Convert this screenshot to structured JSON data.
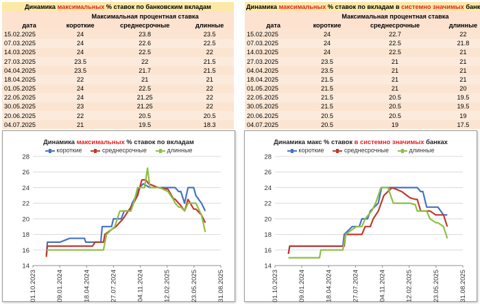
{
  "tables": [
    {
      "title_parts": [
        "Динамика ",
        "максимальных",
        " % ставок по банковским вкладам"
      ],
      "subheader": "Максимальная процентная ставка",
      "columns": [
        "дата",
        "короткие",
        "среднесрочные",
        "длинные"
      ],
      "rows": [
        [
          "15.02.2025",
          "24",
          "23.8",
          "23.5"
        ],
        [
          "07.03.2025",
          "24",
          "22.6",
          "22.5"
        ],
        [
          "14.03.2025",
          "24",
          "22.5",
          "22"
        ],
        [
          "27.03.2025",
          "23.5",
          "22",
          "21.5"
        ],
        [
          "04.04.2025",
          "23.5",
          "21.7",
          "21.5"
        ],
        [
          "18.04.2025",
          "22",
          "21",
          "21"
        ],
        [
          "01.05.2025",
          "24",
          "22.5",
          "22"
        ],
        [
          "22.05.2025",
          "24",
          "21.25",
          "22"
        ],
        [
          "30.05.2025",
          "23",
          "21.25",
          "22"
        ],
        [
          "20.06.2025",
          "22",
          "20.5",
          "20.5"
        ],
        [
          "04.07.2025",
          "21",
          "19.5",
          "18.3"
        ]
      ]
    },
    {
      "title_parts": [
        "Динамика ",
        "максимальных",
        " % ставок по вкладам в ",
        "системно значимых",
        " банках"
      ],
      "subheader": "Максимальная процентная ставка",
      "columns": [
        "дата",
        "короткие",
        "среднесрочные",
        "длинные"
      ],
      "rows": [
        [
          "15.02.2025",
          "24",
          "22.7",
          "22"
        ],
        [
          "07.03.2025",
          "24",
          "22.5",
          "21.8"
        ],
        [
          "14.03.2025",
          "24",
          "22.5",
          "21"
        ],
        [
          "27.03.2025",
          "23.5",
          "21",
          "21"
        ],
        [
          "04.04.2025",
          "23.5",
          "21",
          "21"
        ],
        [
          "18.04.2025",
          "21.5",
          "21",
          "21"
        ],
        [
          "01.05.2025",
          "21.5",
          "21",
          "20"
        ],
        [
          "22.05.2025",
          "21.5",
          "20.5",
          "19.5"
        ],
        [
          "30.05.2025",
          "21.5",
          "20.5",
          "19.5"
        ],
        [
          "20.06.2025",
          "20.5",
          "20.5",
          "19"
        ],
        [
          "04.07.2025",
          "20.5",
          "19",
          "17.5"
        ]
      ]
    }
  ],
  "chart_data": [
    {
      "type": "line",
      "title_parts": [
        "Динамика ",
        "максимальных",
        " % ставок по вкладам"
      ],
      "y_ticks": [
        "14",
        "16",
        "18",
        "20",
        "22",
        "24",
        "26",
        "28"
      ],
      "ylim": [
        14,
        28
      ],
      "x_ticks": [
        "01.10.2023",
        "09.01.2024",
        "18.04.2024",
        "27.07.2024",
        "04.11.2024",
        "12.02.2025",
        "23.05.2025",
        "31.08.2025"
      ],
      "xlim": [
        "2023-10-01",
        "2025-08-31"
      ],
      "grid": true,
      "legend_position": "top",
      "colors": [
        "#4472c4",
        "#c0392b",
        "#8cbf44"
      ],
      "series": [
        {
          "name": "короткие",
          "points": [
            [
              "2023-11-20",
              15.3
            ],
            [
              "2023-11-24",
              17
            ],
            [
              "2024-01-10",
              17
            ],
            [
              "2024-02-15",
              17.5
            ],
            [
              "2024-04-10",
              17.5
            ],
            [
              "2024-04-15",
              17
            ],
            [
              "2024-06-10",
              17
            ],
            [
              "2024-06-15",
              19
            ],
            [
              "2024-07-20",
              19
            ],
            [
              "2024-07-27",
              20
            ],
            [
              "2024-08-25",
              20
            ],
            [
              "2024-09-05",
              21
            ],
            [
              "2024-09-25",
              21
            ],
            [
              "2024-10-05",
              22
            ],
            [
              "2024-10-20",
              23
            ],
            [
              "2024-11-01",
              24
            ],
            [
              "2024-11-15",
              24.5
            ],
            [
              "2024-12-10",
              24
            ],
            [
              "2025-02-15",
              24
            ],
            [
              "2025-03-14",
              24
            ],
            [
              "2025-03-27",
              23.5
            ],
            [
              "2025-04-04",
              23.5
            ],
            [
              "2025-04-18",
              22
            ],
            [
              "2025-05-01",
              24
            ],
            [
              "2025-05-22",
              24
            ],
            [
              "2025-05-30",
              23
            ],
            [
              "2025-06-20",
              22
            ],
            [
              "2025-07-04",
              21
            ]
          ]
        },
        {
          "name": "среднесрочные",
          "points": [
            [
              "2023-11-20",
              15.1
            ],
            [
              "2023-11-24",
              16.5
            ],
            [
              "2024-05-10",
              16.5
            ],
            [
              "2024-05-20",
              17
            ],
            [
              "2024-06-20",
              17
            ],
            [
              "2024-06-25",
              18
            ],
            [
              "2024-07-15",
              18.5
            ],
            [
              "2024-08-05",
              19
            ],
            [
              "2024-09-01",
              20
            ],
            [
              "2024-09-20",
              21
            ],
            [
              "2024-10-10",
              22
            ],
            [
              "2024-10-25",
              23
            ],
            [
              "2024-11-10",
              25
            ],
            [
              "2024-11-25",
              25
            ],
            [
              "2024-12-05",
              24.5
            ],
            [
              "2025-01-10",
              24
            ],
            [
              "2025-02-15",
              23.8
            ],
            [
              "2025-03-07",
              22.6
            ],
            [
              "2025-03-14",
              22.5
            ],
            [
              "2025-03-27",
              22
            ],
            [
              "2025-04-04",
              21.7
            ],
            [
              "2025-04-18",
              21
            ],
            [
              "2025-05-01",
              22.5
            ],
            [
              "2025-05-22",
              21.25
            ],
            [
              "2025-05-30",
              21.25
            ],
            [
              "2025-06-20",
              20.5
            ],
            [
              "2025-07-04",
              19.5
            ]
          ]
        },
        {
          "name": "длинные",
          "points": [
            [
              "2023-11-20",
              16
            ],
            [
              "2024-04-10",
              16
            ],
            [
              "2024-06-20",
              16
            ],
            [
              "2024-07-01",
              18
            ],
            [
              "2024-08-01",
              19
            ],
            [
              "2024-08-20",
              21
            ],
            [
              "2024-09-30",
              21
            ],
            [
              "2024-10-10",
              22
            ],
            [
              "2024-10-25",
              24
            ],
            [
              "2024-11-20",
              24
            ],
            [
              "2024-12-01",
              26.5
            ],
            [
              "2024-12-10",
              24
            ],
            [
              "2025-01-15",
              24
            ],
            [
              "2025-02-15",
              23.5
            ],
            [
              "2025-03-07",
              22.5
            ],
            [
              "2025-03-14",
              22
            ],
            [
              "2025-03-27",
              21.5
            ],
            [
              "2025-04-04",
              21.5
            ],
            [
              "2025-04-18",
              21
            ],
            [
              "2025-05-01",
              22
            ],
            [
              "2025-05-22",
              22
            ],
            [
              "2025-05-30",
              22
            ],
            [
              "2025-06-20",
              20.5
            ],
            [
              "2025-07-04",
              18.3
            ]
          ]
        }
      ]
    },
    {
      "type": "line",
      "title_parts": [
        "Динамика макс % ставок ",
        "в системно значимых",
        " банках"
      ],
      "y_ticks": [
        "14",
        "16",
        "18",
        "20",
        "22",
        "24",
        "26",
        "28"
      ],
      "ylim": [
        14,
        28
      ],
      "x_ticks": [
        "01.10.2023",
        "09.01.2024",
        "18.04.2024",
        "27.07.2024",
        "04.11.2024",
        "12.02.2025",
        "23.05.2025",
        "31.08.2025"
      ],
      "xlim": [
        "2023-10-01",
        "2025-08-31"
      ],
      "grid": true,
      "legend_position": "top",
      "colors": [
        "#4472c4",
        "#c0392b",
        "#8cbf44"
      ],
      "series": [
        {
          "name": "короткие",
          "points": [
            [
              "2023-11-20",
              15.5
            ],
            [
              "2023-11-25",
              16.5
            ],
            [
              "2024-06-10",
              16.5
            ],
            [
              "2024-06-15",
              18
            ],
            [
              "2024-07-15",
              19
            ],
            [
              "2024-08-10",
              19
            ],
            [
              "2024-08-20",
              20
            ],
            [
              "2024-09-10",
              20
            ],
            [
              "2024-09-20",
              21
            ],
            [
              "2024-10-20",
              22
            ],
            [
              "2024-11-01",
              24
            ],
            [
              "2024-11-20",
              24
            ],
            [
              "2024-12-01",
              24
            ],
            [
              "2025-02-15",
              24
            ],
            [
              "2025-03-14",
              24
            ],
            [
              "2025-03-27",
              23.5
            ],
            [
              "2025-04-04",
              23.5
            ],
            [
              "2025-04-18",
              21.5
            ],
            [
              "2025-05-01",
              21.5
            ],
            [
              "2025-05-22",
              21.5
            ],
            [
              "2025-05-30",
              21.5
            ],
            [
              "2025-06-20",
              20.5
            ],
            [
              "2025-07-04",
              20.5
            ]
          ]
        },
        {
          "name": "среднесрочные",
          "points": [
            [
              "2023-11-20",
              15.5
            ],
            [
              "2023-11-25",
              16.5
            ],
            [
              "2024-06-15",
              16.5
            ],
            [
              "2024-06-20",
              18
            ],
            [
              "2024-08-20",
              18
            ],
            [
              "2024-09-01",
              19
            ],
            [
              "2024-09-20",
              19
            ],
            [
              "2024-10-01",
              20
            ],
            [
              "2024-10-20",
              21
            ],
            [
              "2024-11-10",
              23
            ],
            [
              "2024-11-25",
              23.5
            ],
            [
              "2024-12-10",
              24
            ],
            [
              "2025-01-15",
              23.5
            ],
            [
              "2025-02-15",
              22.7
            ],
            [
              "2025-03-07",
              22.5
            ],
            [
              "2025-03-14",
              22.5
            ],
            [
              "2025-03-27",
              21
            ],
            [
              "2025-04-04",
              21
            ],
            [
              "2025-04-18",
              21
            ],
            [
              "2025-05-01",
              21
            ],
            [
              "2025-05-22",
              20.5
            ],
            [
              "2025-05-30",
              20.5
            ],
            [
              "2025-06-20",
              20.5
            ],
            [
              "2025-07-04",
              19
            ]
          ]
        },
        {
          "name": "длинные",
          "points": [
            [
              "2023-11-20",
              15
            ],
            [
              "2024-03-15",
              15
            ],
            [
              "2024-03-20",
              16
            ],
            [
              "2024-06-10",
              16
            ],
            [
              "2024-06-20",
              18
            ],
            [
              "2024-07-30",
              19
            ],
            [
              "2024-08-20",
              19
            ],
            [
              "2024-09-01",
              20
            ],
            [
              "2024-09-25",
              21
            ],
            [
              "2024-10-10",
              22
            ],
            [
              "2024-10-30",
              24
            ],
            [
              "2024-11-25",
              24
            ],
            [
              "2024-12-15",
              22
            ],
            [
              "2025-01-15",
              22
            ],
            [
              "2025-02-15",
              22
            ],
            [
              "2025-03-07",
              21.8
            ],
            [
              "2025-03-14",
              21
            ],
            [
              "2025-03-27",
              21
            ],
            [
              "2025-04-04",
              21
            ],
            [
              "2025-04-18",
              21
            ],
            [
              "2025-05-01",
              20
            ],
            [
              "2025-05-22",
              19.5
            ],
            [
              "2025-05-30",
              19.5
            ],
            [
              "2025-06-20",
              19
            ],
            [
              "2025-07-04",
              17.5
            ]
          ]
        }
      ]
    }
  ]
}
